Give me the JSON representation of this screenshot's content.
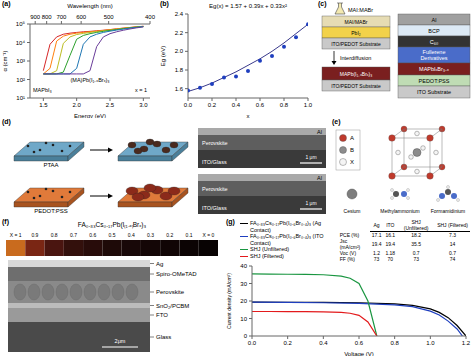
{
  "chart_data": [
    {
      "panel_label": "(a)",
      "type": "line",
      "x_label": "Energy (eV)",
      "x2_label": "Wavelength (nm)",
      "y_label": "α (cm⁻¹)",
      "log": "y",
      "xlim": [
        1.3,
        3.1
      ],
      "xticks": [
        1.5,
        {
          "value": 2,
          "label": "2.0"
        },
        2.5,
        {
          "value": 3,
          "label": "3.0"
        }
      ],
      "x2ticks": [
        {
          "value": 1.378,
          "label": "900"
        },
        {
          "value": 1.55,
          "label": "800"
        },
        {
          "value": 1.771,
          "label": "700"
        },
        {
          "value": 2.067,
          "label": "600"
        },
        {
          "value": 2.48,
          "label": "500"
        },
        {
          "value": 3.1,
          "label": "400"
        }
      ],
      "ylim": [
        10,
        100000
      ],
      "yticks": [
        {
          "value": 10,
          "label": "10¹"
        },
        {
          "value": 100,
          "label": "10²"
        },
        {
          "value": 1000,
          "label": "10³"
        },
        {
          "value": 10000,
          "label": "10⁴"
        },
        {
          "value": 100000,
          "label": "10⁵"
        }
      ],
      "annotations": [
        "(MA)Pb(I₁₋ₓBrₓ)₃",
        "MAPbI₃",
        "x = 1"
      ],
      "x": [
        1.5,
        1.6,
        1.7,
        1.8,
        1.9,
        2.0,
        2.1,
        2.2,
        2.3,
        2.4,
        2.5,
        2.6,
        2.7,
        2.8,
        2.9,
        3.0
      ],
      "series": [
        {
          "color": "#d62728",
          "values": [
            300,
            8000,
            20000,
            28000,
            32000,
            35000,
            38000,
            40000,
            43000,
            46000,
            50000,
            55000,
            60000,
            65000,
            70000,
            75000
          ]
        },
        {
          "color": "#ff7f0e",
          "values": [
            200,
            400,
            12000,
            22000,
            28000,
            32000,
            35000,
            38000,
            41000,
            45000,
            49000,
            54000,
            59000,
            64000,
            70000,
            75000
          ]
        },
        {
          "color": "#bcbd22",
          "values": [
            200,
            200,
            300,
            9000,
            20000,
            27000,
            31000,
            35000,
            39000,
            43000,
            47000,
            52000,
            58000,
            63000,
            69000,
            74000
          ]
        },
        {
          "color": "#2ca02c",
          "values": [
            200,
            200,
            200,
            250,
            2000,
            15000,
            24000,
            30000,
            35000,
            40000,
            45000,
            50000,
            56000,
            62000,
            68000,
            73000
          ]
        },
        {
          "color": "#1f77b4",
          "values": [
            200,
            200,
            200,
            200,
            200,
            400,
            8000,
            20000,
            28000,
            35000,
            41000,
            47000,
            53000,
            60000,
            66000,
            72000
          ]
        },
        {
          "color": "#6a3d9a",
          "values": [
            200,
            200,
            200,
            200,
            200,
            200,
            200,
            300,
            6000,
            20000,
            30000,
            38000,
            46000,
            54000,
            62000,
            70000
          ]
        }
      ]
    },
    {
      "panel_label": "(b)",
      "type": "line",
      "title": "Eg(x) = 1.57 + 0.39x + 0.33x²",
      "x_label": "x",
      "y_label": "Eg (eV)",
      "xlim": [
        0,
        1
      ],
      "xticks": [
        {
          "value": 0,
          "label": "0.0"
        },
        0.2,
        0.4,
        0.6,
        0.8,
        {
          "value": 1,
          "label": "1.0"
        }
      ],
      "ylim": [
        1.5,
        2.4
      ],
      "yticks": [
        1.6,
        1.8,
        {
          "value": 2,
          "label": "2.0"
        },
        2.2,
        2.4
      ],
      "x": [
        0,
        0.1,
        0.2,
        0.3,
        0.4,
        0.5,
        0.6,
        0.7,
        0.8,
        0.9,
        1.0
      ],
      "series": [
        {
          "type": "line",
          "line_style": "solid",
          "color": "#3a3a8c",
          "values": [
            1.57,
            1.61,
            1.66,
            1.72,
            1.78,
            1.85,
            1.92,
            2.0,
            2.09,
            2.19,
            2.29
          ]
        },
        {
          "type": "scatter",
          "marker": "circle",
          "color": "#1f3fbf",
          "values": [
            1.58,
            1.61,
            1.65,
            1.72,
            1.73,
            1.79,
            1.9,
            1.95,
            2.05,
            2.15,
            2.29
          ]
        }
      ]
    },
    {
      "panel_label": "(g)",
      "type": "line",
      "x_label": "Voltage (V)",
      "y_label": "Current density (mA/cm²)",
      "xlim": [
        0,
        1.2
      ],
      "xticks": [
        {
          "value": 0,
          "label": "0.0"
        },
        0.2,
        0.4,
        0.6,
        0.8,
        {
          "value": 1,
          "label": "1.0"
        },
        1.2
      ],
      "ylim": [
        0,
        40
      ],
      "yticks": [
        0,
        10,
        20,
        30,
        40
      ],
      "legend": "top",
      "series": [
        {
          "name": "FA₀.₈₃Cs₀.₁₇Pb(I₀.₆Br₀.₄)₃ (Ag Contact)",
          "color": "#000000",
          "x": [
            0,
            0.2,
            0.4,
            0.6,
            0.8,
            0.9,
            1.0,
            1.05,
            1.1,
            1.15,
            1.2
          ],
          "values": [
            19.4,
            19.3,
            19.2,
            19.0,
            18.4,
            17.5,
            15.5,
            13.5,
            10.5,
            6.0,
            0
          ]
        },
        {
          "name": "FA₀.₈₃Cs₀.₁₇Pb(I₀.₆Br₀.₄)₃ (ITO Contact)",
          "color": "#1f3fbf",
          "x": [
            0,
            0.2,
            0.4,
            0.6,
            0.8,
            0.9,
            1.0,
            1.05,
            1.1,
            1.15,
            1.18
          ],
          "values": [
            19.4,
            19.2,
            19.0,
            18.6,
            17.8,
            16.8,
            14.2,
            12.0,
            8.5,
            4.0,
            0
          ]
        },
        {
          "name": "SHJ (Unfiltered)",
          "color": "#1a9641",
          "x": [
            0,
            0.1,
            0.2,
            0.3,
            0.4,
            0.5,
            0.55,
            0.6,
            0.65,
            0.7
          ],
          "values": [
            35.5,
            35.4,
            35.3,
            35.2,
            35.0,
            34.2,
            33.0,
            30.0,
            20.0,
            0
          ]
        },
        {
          "name": "SHJ (Filtered)",
          "color": "#e31a1c",
          "x": [
            0,
            0.1,
            0.2,
            0.3,
            0.4,
            0.5,
            0.55,
            0.6,
            0.65,
            0.7
          ],
          "values": [
            14.0,
            14.0,
            13.9,
            13.9,
            13.8,
            13.5,
            13.0,
            11.8,
            8.0,
            0
          ]
        }
      ],
      "table": {
        "header": [
          "Ag",
          "ITO",
          "SHJ (Unfiltered)",
          "SHJ (Filtered)"
        ],
        "rows": [
          {
            "label": "PCE (%)",
            "cells": [
              17.1,
              16.1,
              18.2,
              7.3
            ]
          },
          {
            "label": "Jsc (mA/cm²)",
            "cells": [
              19.4,
              19.4,
              35.5,
              14.0
            ]
          },
          {
            "label": "Voc (V)",
            "cells": [
              1.2,
              1.18,
              0.7,
              0.7
            ]
          },
          {
            "label": "FF (%)",
            "cells": [
              73,
              70,
              73,
              74
            ]
          }
        ]
      }
    }
  ],
  "diagrams": {
    "c": {
      "panel_label": "(c)",
      "solution": "MAI:MABr",
      "before": [
        "MAI/MABr",
        "PbI₂",
        "ITO/PEDOT Substrate"
      ],
      "process": "Interdiffusion",
      "after": [
        "MAPb(I₁₋ₓBrₓ)₃",
        "ITO/PEDOT Substrate"
      ],
      "device": [
        "Al",
        "BCP",
        "C₆₀",
        "Fullerene Derivatives",
        "MAPbIₓBr₃₋ₓ",
        "PEDOT:PSS",
        "ITO Substrate"
      ]
    },
    "d": {
      "panel_label": "(d)",
      "substrates": [
        "PTAA",
        "PEDOT:PSS"
      ],
      "cross_section_labels": [
        "Al",
        "Perovskite",
        "ITO/Glass"
      ],
      "scale_bar": "1 μm"
    },
    "e": {
      "panel_label": "(e)",
      "sites": [
        "A",
        "B",
        "X"
      ],
      "cations": [
        "Cesium",
        "Methylammonium",
        "Formamidinium"
      ]
    },
    "f": {
      "panel_label": "(f)",
      "title": "FA₀.₈₃Cs₀.₁₇Pb(I₍₁₋ₓ₎Brₓ)₃",
      "compositions": [
        "X = 1",
        "0.9",
        "0.8",
        "0.7",
        "0.6",
        "0.5",
        "0.4",
        "0.3",
        "0.2",
        "0.1",
        "X = 0"
      ],
      "colors": [
        "#c96b1e",
        "#7a2614",
        "#4a1510",
        "#33100c",
        "#280c0a",
        "#1e0a08",
        "#180808",
        "#140606",
        "#100505",
        "#0c0404",
        "#080303"
      ],
      "layers": [
        "Ag",
        "Spiro-OMeTAD",
        "Perovskite",
        "SnO₂/PCBM",
        "FTO",
        "Glass"
      ],
      "scale_bar": "2μm"
    }
  }
}
